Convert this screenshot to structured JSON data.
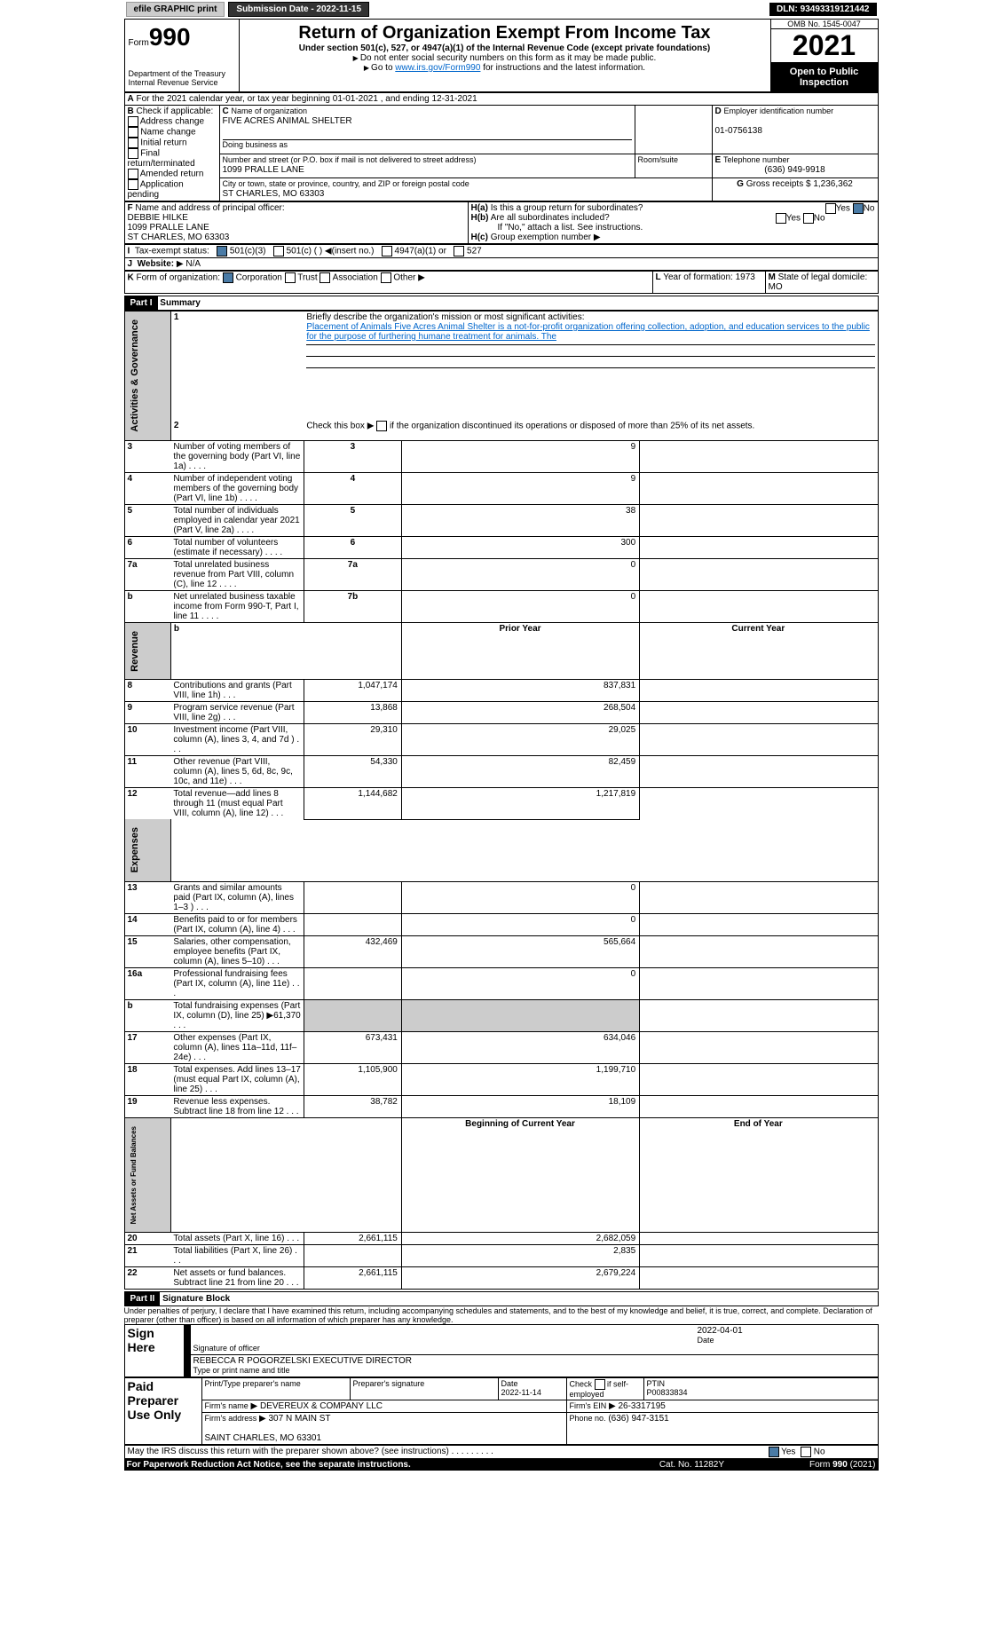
{
  "topbar": {
    "efile": "efile GRAPHIC print",
    "submission": "Submission Date - 2022-11-15",
    "dln": "DLN: 93493319121442"
  },
  "header": {
    "form": "Form",
    "formNum": "990",
    "dept": "Department of the Treasury\nInternal Revenue Service",
    "title": "Return of Organization Exempt From Income Tax",
    "subtitle": "Under section 501(c), 527, or 4947(a)(1) of the Internal Revenue Code (except private foundations)",
    "note1": "Do not enter social security numbers on this form as it may be made public.",
    "note2": "Go to",
    "irsLink": "www.irs.gov/Form990",
    "note2b": "for instructions and the latest information.",
    "omb": "OMB No. 1545-0047",
    "year": "2021",
    "openPublic": "Open to Public Inspection"
  },
  "sectionA": {
    "calYear": "For the 2021 calendar year, or tax year beginning 01-01-2021   , and ending 12-31-2021",
    "checkLabel": "Check if applicable:",
    "checks": [
      "Address change",
      "Name change",
      "Initial return",
      "Final return/terminated",
      "Amended return",
      "Application pending"
    ],
    "orgNameLabel": "Name of organization",
    "orgName": "FIVE ACRES ANIMAL SHELTER",
    "dba": "Doing business as",
    "addrLabel": "Number and street (or P.O. box if mail is not delivered to street address)",
    "addr": "1099 PRALLE LANE",
    "roomLabel": "Room/suite",
    "cityLabel": "City or town, state or province, country, and ZIP or foreign postal code",
    "city": "ST CHARLES, MO  63303",
    "einLabel": "Employer identification number",
    "ein": "01-0756138",
    "phoneLabel": "Telephone number",
    "phone": "(636) 949-9918",
    "grossLabel": "Gross receipts $",
    "gross": "1,236,362",
    "officerLabel": "Name and address of principal officer:",
    "officerName": "DEBBIE HILKE",
    "officerAddr": "1099 PRALLE LANE\nST CHARLES, MO  63303",
    "ha": "Is this a group return for subordinates?",
    "hb": "Are all subordinates included?",
    "hbNote": "If \"No,\" attach a list. See instructions.",
    "hc": "Group exemption number",
    "yes": "Yes",
    "no": "No"
  },
  "sectionI": {
    "label": "Tax-exempt status:",
    "opt1": "501(c)(3)",
    "opt2": "501(c) (  )",
    "opt2b": "(insert no.)",
    "opt3": "4947(a)(1) or",
    "opt4": "527"
  },
  "sectionJ": {
    "label": "Website:",
    "value": "N/A"
  },
  "sectionK": {
    "label": "Form of organization:",
    "opts": [
      "Corporation",
      "Trust",
      "Association",
      "Other"
    ],
    "yearLabel": "Year of formation:",
    "year": "1973",
    "stateLabel": "State of legal domicile:",
    "state": "MO"
  },
  "part1": {
    "title": "Part I",
    "heading": "Summary",
    "line1": "Briefly describe the organization's mission or most significant activities:",
    "line1text": "Placement of Animals Five Acres Animal Shelter is a not-for-profit organization offering collection, adoption, and education services to the public for the purpose of furthering humane treatment for animals. The",
    "line2": "Check this box",
    "line2b": "if the organization discontinued its operations or disposed of more than 25% of its net assets.",
    "labels": {
      "activities": "Activities & Governance",
      "revenue": "Revenue",
      "expenses": "Expenses",
      "netassets": "Net Assets or Fund Balances"
    },
    "rows": [
      {
        "n": "3",
        "t": "Number of voting members of the governing body (Part VI, line 1a)",
        "box": "3",
        "v": "9"
      },
      {
        "n": "4",
        "t": "Number of independent voting members of the governing body (Part VI, line 1b)",
        "box": "4",
        "v": "9"
      },
      {
        "n": "5",
        "t": "Total number of individuals employed in calendar year 2021 (Part V, line 2a)",
        "box": "5",
        "v": "38"
      },
      {
        "n": "6",
        "t": "Total number of volunteers (estimate if necessary)",
        "box": "6",
        "v": "300"
      },
      {
        "n": "7a",
        "t": "Total unrelated business revenue from Part VIII, column (C), line 12",
        "box": "7a",
        "v": "0"
      },
      {
        "n": "b",
        "t": "Net unrelated business taxable income from Form 990-T, Part I, line 11",
        "box": "7b",
        "v": "0"
      }
    ],
    "colHeaders": {
      "prior": "Prior Year",
      "current": "Current Year"
    },
    "revenue": [
      {
        "n": "8",
        "t": "Contributions and grants (Part VIII, line 1h)",
        "p": "1,047,174",
        "c": "837,831"
      },
      {
        "n": "9",
        "t": "Program service revenue (Part VIII, line 2g)",
        "p": "13,868",
        "c": "268,504"
      },
      {
        "n": "10",
        "t": "Investment income (Part VIII, column (A), lines 3, 4, and 7d )",
        "p": "29,310",
        "c": "29,025"
      },
      {
        "n": "11",
        "t": "Other revenue (Part VIII, column (A), lines 5, 6d, 8c, 9c, 10c, and 11e)",
        "p": "54,330",
        "c": "82,459"
      },
      {
        "n": "12",
        "t": "Total revenue—add lines 8 through 11 (must equal Part VIII, column (A), line 12)",
        "p": "1,144,682",
        "c": "1,217,819"
      }
    ],
    "expenses": [
      {
        "n": "13",
        "t": "Grants and similar amounts paid (Part IX, column (A), lines 1–3 )",
        "p": "",
        "c": "0"
      },
      {
        "n": "14",
        "t": "Benefits paid to or for members (Part IX, column (A), line 4)",
        "p": "",
        "c": "0"
      },
      {
        "n": "15",
        "t": "Salaries, other compensation, employee benefits (Part IX, column (A), lines 5–10)",
        "p": "432,469",
        "c": "565,664"
      },
      {
        "n": "16a",
        "t": "Professional fundraising fees (Part IX, column (A), line 11e)",
        "p": "",
        "c": "0"
      },
      {
        "n": "b",
        "t": "Total fundraising expenses (Part IX, column (D), line 25) ▶61,370",
        "p": "GRAY",
        "c": "GRAY"
      },
      {
        "n": "17",
        "t": "Other expenses (Part IX, column (A), lines 11a–11d, 11f–24e)",
        "p": "673,431",
        "c": "634,046"
      },
      {
        "n": "18",
        "t": "Total expenses. Add lines 13–17 (must equal Part IX, column (A), line 25)",
        "p": "1,105,900",
        "c": "1,199,710"
      },
      {
        "n": "19",
        "t": "Revenue less expenses. Subtract line 18 from line 12",
        "p": "38,782",
        "c": "18,109"
      }
    ],
    "netHeaders": {
      "begin": "Beginning of Current Year",
      "end": "End of Year"
    },
    "netassets": [
      {
        "n": "20",
        "t": "Total assets (Part X, line 16)",
        "p": "2,661,115",
        "c": "2,682,059"
      },
      {
        "n": "21",
        "t": "Total liabilities (Part X, line 26)",
        "p": "",
        "c": "2,835"
      },
      {
        "n": "22",
        "t": "Net assets or fund balances. Subtract line 21 from line 20",
        "p": "2,661,115",
        "c": "2,679,224"
      }
    ]
  },
  "part2": {
    "title": "Part II",
    "heading": "Signature Block",
    "declaration": "Under penalties of perjury, I declare that I have examined this return, including accompanying schedules and statements, and to the best of my knowledge and belief, it is true, correct, and complete. Declaration of preparer (other than officer) is based on all information of which preparer has any knowledge.",
    "signHere": "Sign Here",
    "sigOfficer": "Signature of officer",
    "date": "Date",
    "sigDate": "2022-04-01",
    "typeName": "Type or print name and title",
    "officerName": "REBECCA R POGORZELSKI  EXECUTIVE DIRECTOR",
    "paidPrep": "Paid Preparer Use Only",
    "prepName": "Print/Type preparer's name",
    "prepSig": "Preparer's signature",
    "prepDate": "Date",
    "prepDateVal": "2022-11-14",
    "checkSelf": "Check",
    "selfEmp": "if self-employed",
    "ptin": "PTIN",
    "ptinVal": "P00833834",
    "firmName": "Firm's name",
    "firmNameVal": "DEVEREUX & COMPANY LLC",
    "firmEin": "Firm's EIN",
    "firmEinVal": "26-3317195",
    "firmAddr": "Firm's address",
    "firmAddrVal": "307 N MAIN ST\n\nSAINT CHARLES, MO  63301",
    "phoneNo": "Phone no.",
    "phoneVal": "(636) 947-3151",
    "mayIRS": "May the IRS discuss this return with the preparer shown above? (see instructions)",
    "paperwork": "For Paperwork Reduction Act Notice, see the separate instructions.",
    "catNo": "Cat. No. 11282Y",
    "formFooter": "Form 990 (2021)"
  }
}
